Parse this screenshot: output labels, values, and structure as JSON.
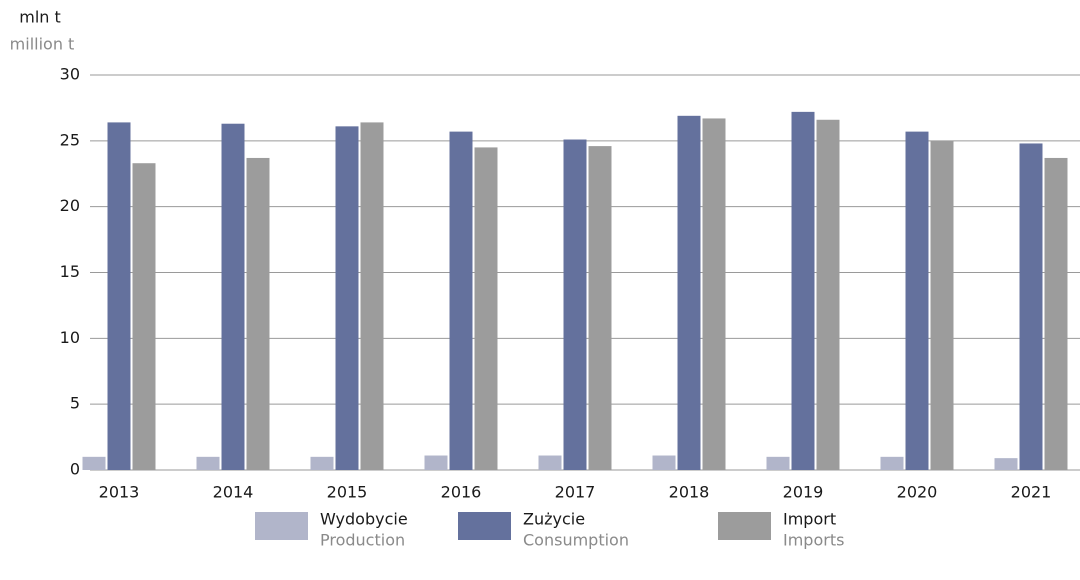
{
  "chart_data": {
    "type": "bar",
    "y_label": "mln t",
    "y_label_en": "million t",
    "categories": [
      "2013",
      "2014",
      "2015",
      "2016",
      "2017",
      "2018",
      "2019",
      "2020",
      "2021"
    ],
    "series": [
      {
        "name": "Wydobycie",
        "name_en": "Production",
        "color": "#b1b5ca",
        "values": [
          1.0,
          1.0,
          1.0,
          1.1,
          1.1,
          1.1,
          1.0,
          1.0,
          0.9
        ]
      },
      {
        "name": "Zużycie",
        "name_en": "Consumption",
        "color": "#64719d",
        "values": [
          26.4,
          26.3,
          26.1,
          25.7,
          25.1,
          26.9,
          27.2,
          25.7,
          24.8
        ]
      },
      {
        "name": "Import",
        "name_en": "Imports",
        "color": "#9c9c9c",
        "values": [
          23.3,
          23.7,
          26.4,
          24.5,
          24.6,
          26.7,
          26.6,
          25.0,
          23.7
        ]
      }
    ],
    "ylim": [
      0,
      30
    ],
    "yticks": [
      0,
      5,
      10,
      15,
      20,
      25,
      30
    ],
    "grid": true
  }
}
